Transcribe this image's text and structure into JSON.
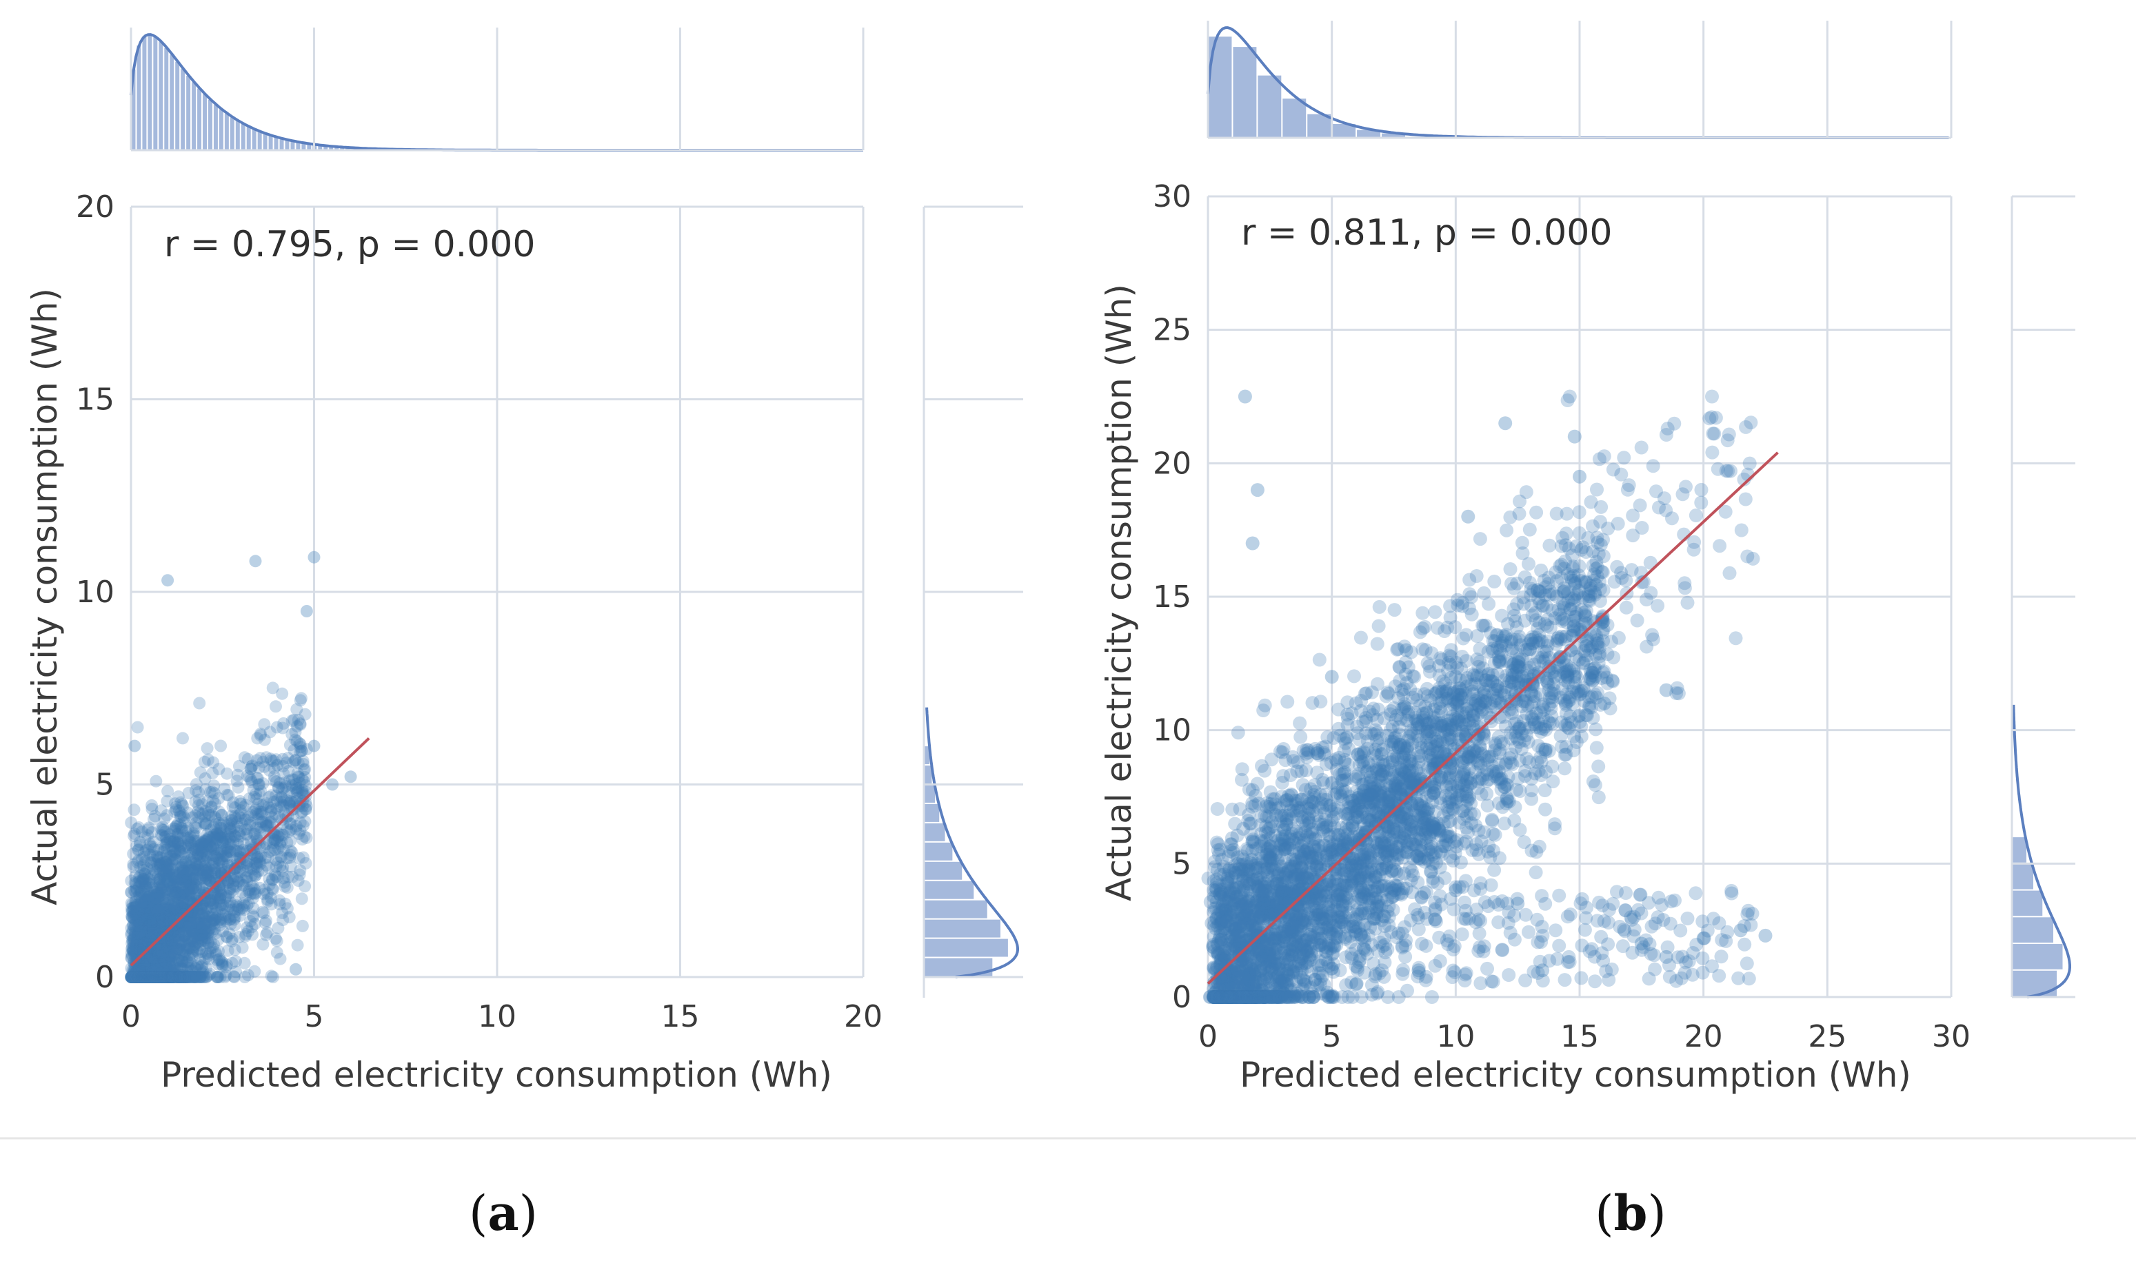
{
  "colors": {
    "points": "#3d7ab5",
    "fit_line": "#c0525b",
    "histogram": "#5b7fbf",
    "grid": "#d7dde6",
    "divider": "#e6e6e6"
  },
  "chart_data": [
    {
      "type": "scatter",
      "panel": "a",
      "panel_label": "a",
      "annotation": "r = 0.795, p = 0.000",
      "xlabel": "Predicted electricity consumption (Wh)",
      "ylabel": "Actual electricity consumption (Wh)",
      "xlim": [
        0,
        20
      ],
      "ylim": [
        0,
        20
      ],
      "xticks": [
        "0",
        "5",
        "10",
        "15",
        "20"
      ],
      "yticks": [
        "0",
        "5",
        "10",
        "15",
        "20"
      ],
      "grid": true,
      "marginal_histograms": true,
      "regression_line": {
        "x": [
          0,
          6.5
        ],
        "y": [
          0.3,
          6.2
        ]
      },
      "point_cloud": {
        "x_range": [
          0,
          6.5
        ],
        "y_range": [
          0,
          11
        ],
        "approx_points": [
          [
            0.5,
            1.5
          ],
          [
            1.0,
            2.5
          ],
          [
            1.5,
            3.0
          ],
          [
            2.0,
            4.0
          ],
          [
            2.5,
            3.5
          ],
          [
            3.0,
            4.5
          ],
          [
            3.5,
            5.0
          ],
          [
            4.0,
            5.5
          ],
          [
            4.5,
            5.0
          ],
          [
            5.0,
            6.0
          ],
          [
            5.5,
            5.0
          ],
          [
            6.0,
            5.2
          ],
          [
            1.0,
            10.3
          ],
          [
            3.4,
            10.8
          ],
          [
            5.0,
            10.9
          ],
          [
            4.8,
            9.5
          ],
          [
            0.1,
            6.0
          ],
          [
            2.5,
            0.3
          ],
          [
            4.5,
            0.2
          ]
        ]
      },
      "x_marginal_mode": 0.3,
      "y_marginal_mode": 0.5
    },
    {
      "type": "scatter",
      "panel": "b",
      "panel_label": "b",
      "annotation": "r = 0.811, p = 0.000",
      "xlabel": "Predicted electricity consumption (Wh)",
      "ylabel": "Actual electricity consumption (Wh)",
      "xlim": [
        0,
        30
      ],
      "ylim": [
        0,
        30
      ],
      "xticks": [
        "0",
        "5",
        "10",
        "15",
        "20",
        "25",
        "30"
      ],
      "yticks": [
        "0",
        "5",
        "10",
        "15",
        "20",
        "25",
        "30"
      ],
      "grid": true,
      "marginal_histograms": true,
      "regression_line": {
        "x": [
          0,
          23
        ],
        "y": [
          0.5,
          20.4
        ]
      },
      "point_cloud": {
        "x_range": [
          0,
          23
        ],
        "y_range": [
          0,
          22.5
        ],
        "approx_points": [
          [
            1.5,
            22.5
          ],
          [
            2.0,
            19.0
          ],
          [
            1.8,
            17.0
          ],
          [
            12.0,
            21.5
          ],
          [
            14.8,
            21.0
          ],
          [
            10.5,
            18.0
          ],
          [
            15.0,
            19.5
          ],
          [
            5.0,
            12.0
          ],
          [
            8.0,
            13.0
          ],
          [
            10.0,
            12.0
          ],
          [
            12.0,
            13.5
          ],
          [
            14.0,
            12.0
          ],
          [
            16.0,
            11.0
          ],
          [
            18.5,
            11.5
          ],
          [
            17.5,
            2.0
          ],
          [
            18.5,
            1.5
          ],
          [
            20.0,
            2.2
          ],
          [
            21.5,
            2.5
          ],
          [
            22.5,
            2.3
          ],
          [
            13.5,
            1.0
          ],
          [
            12.5,
            3.5
          ],
          [
            6.0,
            0.5
          ],
          [
            8.5,
            1.0
          ],
          [
            10.0,
            4.0
          ],
          [
            3.0,
            6.0
          ]
        ]
      },
      "x_marginal_mode": 1.5,
      "y_marginal_mode": 1.8
    }
  ]
}
